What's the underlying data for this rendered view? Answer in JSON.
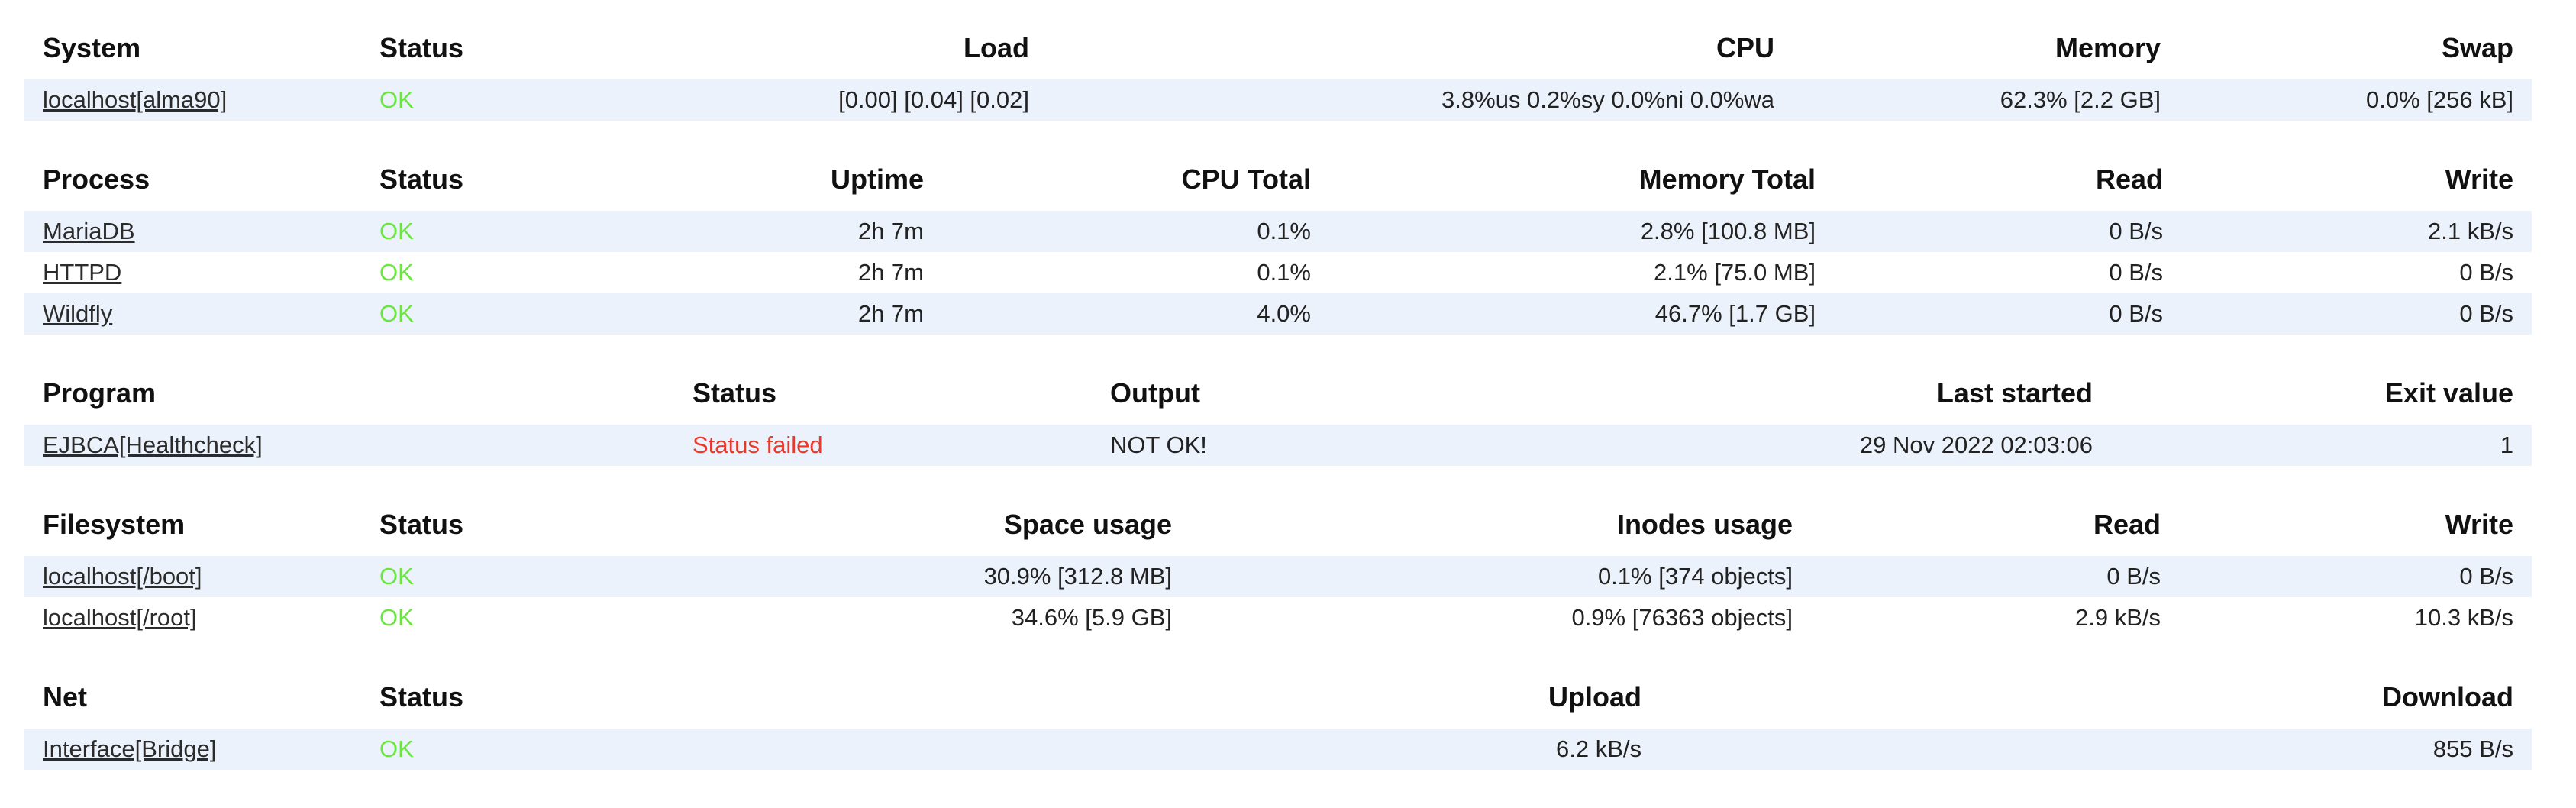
{
  "colors": {
    "stripe": "#ecf2fb",
    "ok": "#69e73f",
    "fail": "#e8392c",
    "link": "#2b2b2b",
    "text": "#222222",
    "header": "#111111"
  },
  "tables": [
    {
      "name": "system",
      "columns": [
        {
          "label": "System",
          "align": "left"
        },
        {
          "label": "Status",
          "align": "left"
        },
        {
          "label": "Load",
          "align": "right"
        },
        {
          "label": "CPU",
          "align": "right"
        },
        {
          "label": "Memory",
          "align": "right"
        },
        {
          "label": "Swap",
          "align": "right"
        }
      ],
      "rows": [
        {
          "cells": [
            {
              "text": "localhost[alma90]",
              "type": "link"
            },
            {
              "text": "OK",
              "type": "status-ok"
            },
            {
              "text": "[0.00] [0.04] [0.02]",
              "type": "text"
            },
            {
              "text": "3.8%us 0.2%sy 0.0%ni 0.0%wa",
              "type": "text"
            },
            {
              "text": "62.3% [2.2 GB]",
              "type": "text"
            },
            {
              "text": "0.0% [256 kB]",
              "type": "text"
            }
          ]
        }
      ]
    },
    {
      "name": "process",
      "columns": [
        {
          "label": "Process",
          "align": "left"
        },
        {
          "label": "Status",
          "align": "left"
        },
        {
          "label": "Uptime",
          "align": "right"
        },
        {
          "label": "CPU Total",
          "align": "right"
        },
        {
          "label": "Memory Total",
          "align": "right"
        },
        {
          "label": "Read",
          "align": "right"
        },
        {
          "label": "Write",
          "align": "right"
        }
      ],
      "rows": [
        {
          "cells": [
            {
              "text": "MariaDB",
              "type": "link"
            },
            {
              "text": "OK",
              "type": "status-ok"
            },
            {
              "text": "2h 7m",
              "type": "text"
            },
            {
              "text": "0.1%",
              "type": "text"
            },
            {
              "text": "2.8% [100.8 MB]",
              "type": "text"
            },
            {
              "text": "0 B/s",
              "type": "text"
            },
            {
              "text": "2.1 kB/s",
              "type": "text"
            }
          ]
        },
        {
          "cells": [
            {
              "text": "HTTPD",
              "type": "link"
            },
            {
              "text": "OK",
              "type": "status-ok"
            },
            {
              "text": "2h 7m",
              "type": "text"
            },
            {
              "text": "0.1%",
              "type": "text"
            },
            {
              "text": "2.1% [75.0 MB]",
              "type": "text"
            },
            {
              "text": "0 B/s",
              "type": "text"
            },
            {
              "text": "0 B/s",
              "type": "text"
            }
          ]
        },
        {
          "cells": [
            {
              "text": "Wildfly",
              "type": "link"
            },
            {
              "text": "OK",
              "type": "status-ok"
            },
            {
              "text": "2h 7m",
              "type": "text"
            },
            {
              "text": "4.0%",
              "type": "text"
            },
            {
              "text": "46.7% [1.7 GB]",
              "type": "text"
            },
            {
              "text": "0 B/s",
              "type": "text"
            },
            {
              "text": "0 B/s",
              "type": "text"
            }
          ]
        }
      ]
    },
    {
      "name": "program",
      "columns": [
        {
          "label": "Program",
          "align": "left"
        },
        {
          "label": "Status",
          "align": "left"
        },
        {
          "label": "Output",
          "align": "left"
        },
        {
          "label": "Last started",
          "align": "right"
        },
        {
          "label": "Exit value",
          "align": "right"
        }
      ],
      "rows": [
        {
          "cells": [
            {
              "text": "EJBCA[Healthcheck]",
              "type": "link"
            },
            {
              "text": "Status failed",
              "type": "status-fail"
            },
            {
              "text": "NOT OK!",
              "type": "text"
            },
            {
              "text": "29 Nov 2022 02:03:06",
              "type": "text"
            },
            {
              "text": "1",
              "type": "text"
            }
          ]
        }
      ]
    },
    {
      "name": "filesystem",
      "columns": [
        {
          "label": "Filesystem",
          "align": "left"
        },
        {
          "label": "Status",
          "align": "left"
        },
        {
          "label": "Space usage",
          "align": "right"
        },
        {
          "label": "Inodes usage",
          "align": "right"
        },
        {
          "label": "Read",
          "align": "right"
        },
        {
          "label": "Write",
          "align": "right"
        }
      ],
      "rows": [
        {
          "cells": [
            {
              "text": "localhost[/boot]",
              "type": "link"
            },
            {
              "text": "OK",
              "type": "status-ok"
            },
            {
              "text": "30.9% [312.8 MB]",
              "type": "text"
            },
            {
              "text": "0.1% [374 objects]",
              "type": "text"
            },
            {
              "text": "0 B/s",
              "type": "text"
            },
            {
              "text": "0 B/s",
              "type": "text"
            }
          ]
        },
        {
          "cells": [
            {
              "text": "localhost[/root]",
              "type": "link"
            },
            {
              "text": "OK",
              "type": "status-ok"
            },
            {
              "text": "34.6% [5.9 GB]",
              "type": "text"
            },
            {
              "text": "0.9% [76363 objects]",
              "type": "text"
            },
            {
              "text": "2.9 kB/s",
              "type": "text"
            },
            {
              "text": "10.3 kB/s",
              "type": "text"
            }
          ]
        }
      ]
    },
    {
      "name": "net",
      "columns": [
        {
          "label": "Net",
          "align": "left"
        },
        {
          "label": "Status",
          "align": "left"
        },
        {
          "label": "Upload",
          "align": "right"
        },
        {
          "label": "Download",
          "align": "right"
        }
      ],
      "rows": [
        {
          "cells": [
            {
              "text": "Interface[Bridge]",
              "type": "link"
            },
            {
              "text": "OK",
              "type": "status-ok"
            },
            {
              "text": "6.2 kB/s",
              "type": "text"
            },
            {
              "text": "855 B/s",
              "type": "text"
            }
          ]
        }
      ]
    }
  ]
}
